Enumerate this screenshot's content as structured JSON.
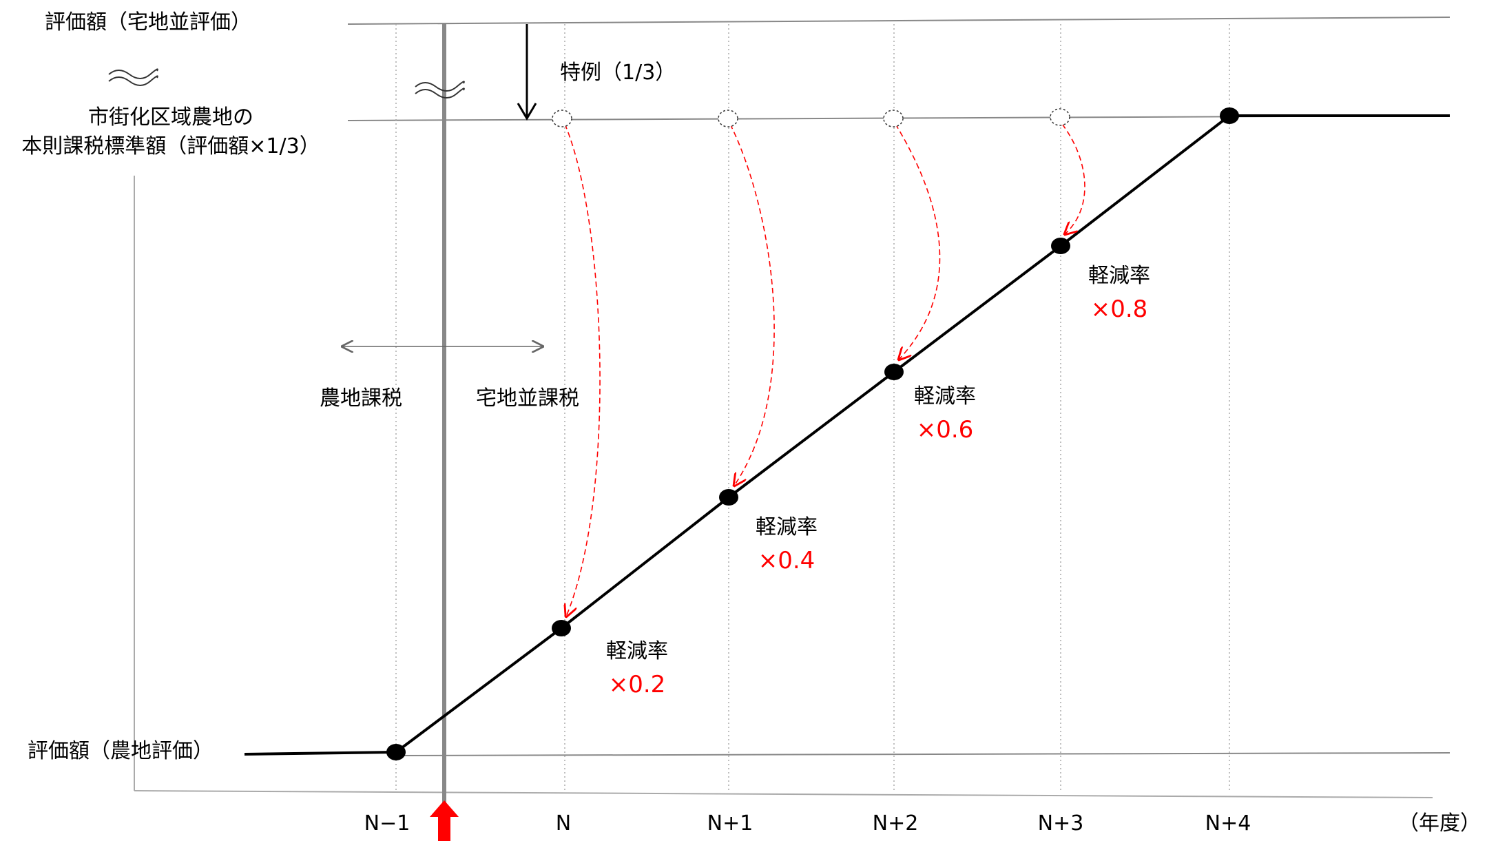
{
  "y_labels": {
    "top": "評価額（宅地並評価）",
    "mid_line1": "市街化区域農地の",
    "mid_line2": "本則課税標準額（評価額×1/3）",
    "bottom": "評価額（農地評価）"
  },
  "tokurei_label": "特例（1/3）",
  "zone_labels": {
    "left": "農地課税",
    "right": "宅地並課税"
  },
  "x_ticks": [
    "N−1",
    "N",
    "N+1",
    "N+2",
    "N+3",
    "N+4"
  ],
  "x_unit": "（年度）",
  "reductions": [
    {
      "label": "軽減率",
      "value": "×0.2"
    },
    {
      "label": "軽減率",
      "value": "×0.4"
    },
    {
      "label": "軽減率",
      "value": "×0.6"
    },
    {
      "label": "軽減率",
      "value": "×0.8"
    }
  ],
  "colors": {
    "line": "#000000",
    "grid": "#888888",
    "accent": "#ff0000",
    "dashed": "#ff0000"
  }
}
